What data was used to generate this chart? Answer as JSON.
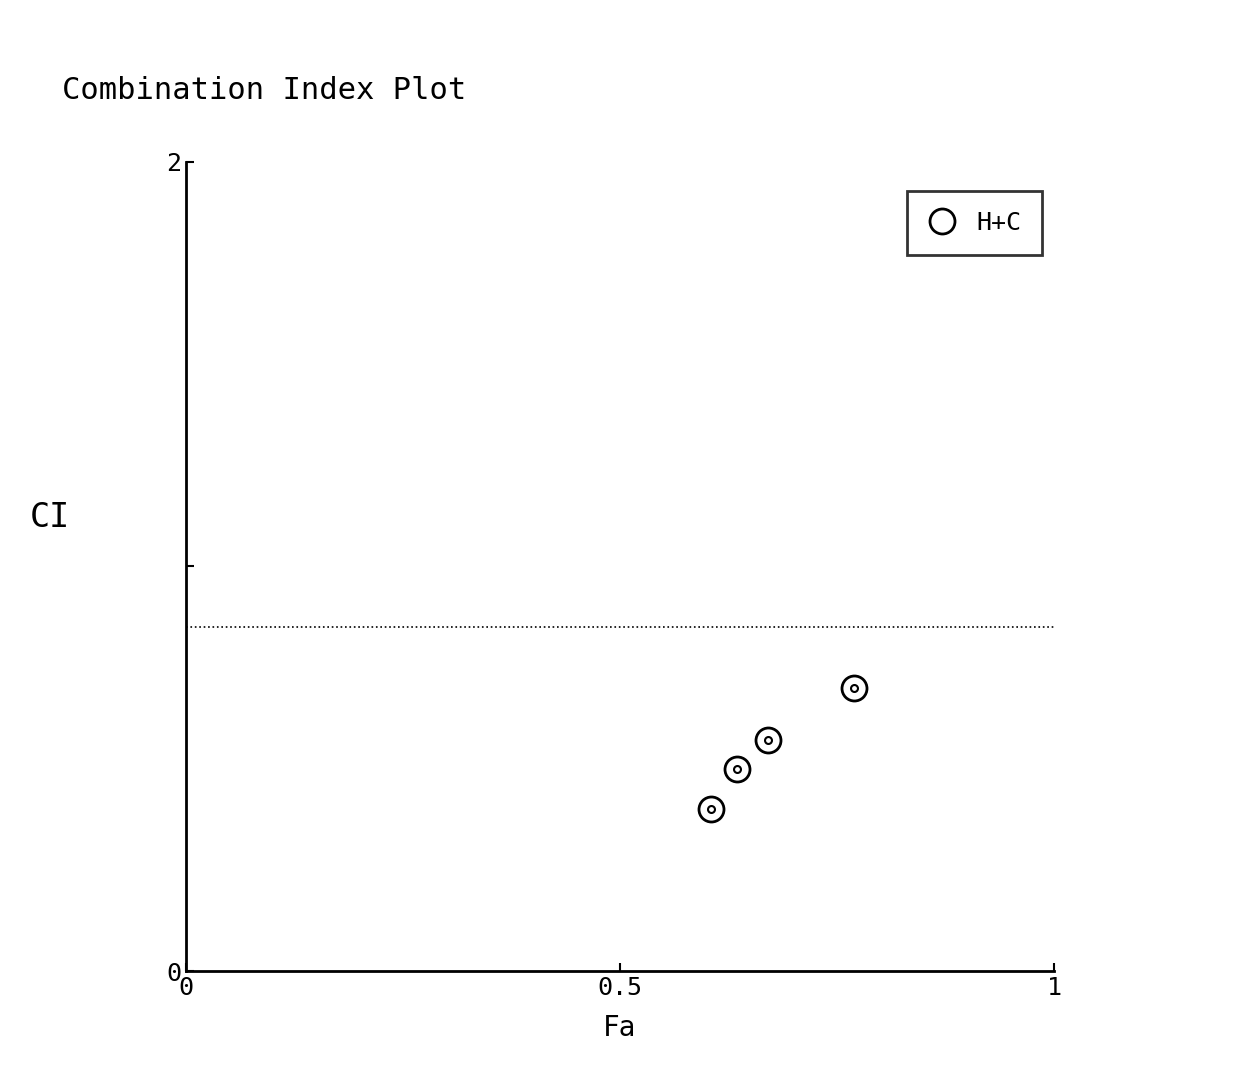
{
  "title": "Combination Index Plot",
  "xlabel": "Fa",
  "ylabel": "CI",
  "xlim": [
    0,
    1
  ],
  "ylim": [
    0,
    2
  ],
  "xticks": [
    0,
    0.5,
    1
  ],
  "yticks": [
    0,
    1,
    2
  ],
  "xticklabels": [
    "0",
    "0.5",
    "1"
  ],
  "yticklabels": [
    "0",
    "",
    "2"
  ],
  "hline_y": 0.85,
  "data_x": [
    0.605,
    0.635,
    0.67,
    0.77
  ],
  "data_y": [
    0.4,
    0.5,
    0.57,
    0.7
  ],
  "marker_outer_size": 18,
  "marker_inner_size": 5,
  "marker_color": "white",
  "marker_edgecolor": "black",
  "marker_edgewidth": 2.0,
  "legend_label": "H+C",
  "background_color": "#ffffff",
  "title_fontsize": 22,
  "label_fontsize": 20,
  "tick_fontsize": 18,
  "legend_fontsize": 18
}
